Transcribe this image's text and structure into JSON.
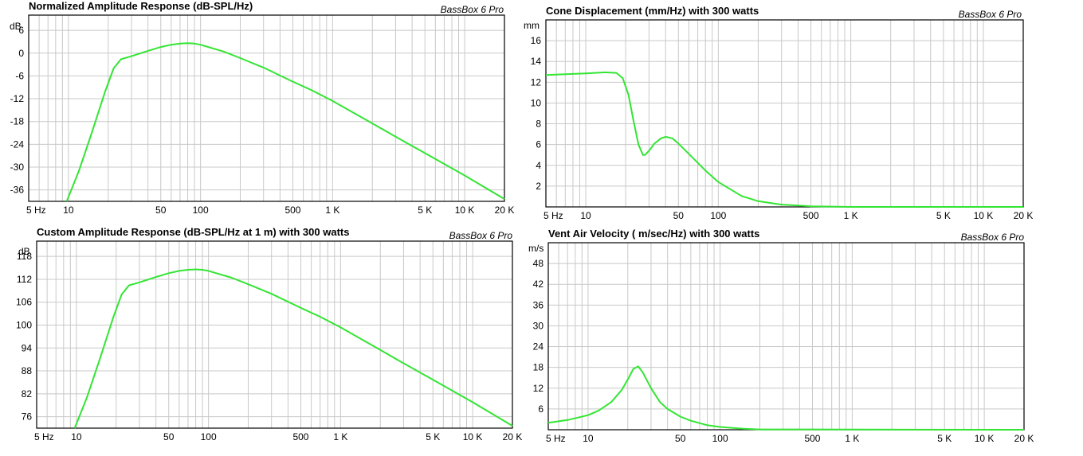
{
  "brand_label": "BassBox 6 Pro",
  "curve_color": "#33e533",
  "chart_data": [
    {
      "type": "line",
      "title": "Normalized Amplitude Response (dB-SPL/Hz)",
      "yunit": "dB",
      "xscale": "log",
      "xlim": [
        5,
        20000
      ],
      "ylim": [
        -39,
        10
      ],
      "yticks": [
        6,
        0,
        -6,
        -12,
        -18,
        -24,
        -30,
        -36
      ],
      "xtick_labels": [
        {
          "v": 5,
          "label": "5 Hz"
        },
        {
          "v": 10,
          "label": "10"
        },
        {
          "v": 50,
          "label": "50"
        },
        {
          "v": 100,
          "label": "100"
        },
        {
          "v": 500,
          "label": "500"
        },
        {
          "v": 1000,
          "label": "1 K"
        },
        {
          "v": 5000,
          "label": "5 K"
        },
        {
          "v": 10000,
          "label": "10 K"
        },
        {
          "v": 20000,
          "label": "20 K"
        }
      ],
      "grid": true,
      "series": [
        {
          "x": [
            9.7,
            12,
            15,
            19,
            22,
            25,
            30,
            40,
            50,
            60,
            70,
            80,
            90,
            100,
            150,
            200,
            300,
            500,
            700,
            1000,
            2000,
            3000,
            5000,
            10000,
            20000
          ],
          "values": [
            -39,
            -31,
            -21,
            -10,
            -4,
            -1.6,
            -0.8,
            0.6,
            1.6,
            2.2,
            2.5,
            2.6,
            2.5,
            2.2,
            0.4,
            -1.3,
            -3.8,
            -7.5,
            -9.8,
            -12.6,
            -18.5,
            -22,
            -26.3,
            -32.2,
            -38.4
          ]
        }
      ]
    },
    {
      "type": "line",
      "title": "Cone Displacement (mm/Hz) with 300 watts",
      "yunit": "mm",
      "xscale": "log",
      "xlim": [
        5,
        20000
      ],
      "ylim": [
        0,
        18
      ],
      "yticks": [
        16,
        14,
        12,
        10,
        8,
        6,
        4,
        2
      ],
      "xtick_labels": [
        {
          "v": 5,
          "label": "5 Hz"
        },
        {
          "v": 10,
          "label": "10"
        },
        {
          "v": 50,
          "label": "50"
        },
        {
          "v": 100,
          "label": "100"
        },
        {
          "v": 500,
          "label": "500"
        },
        {
          "v": 1000,
          "label": "1 K"
        },
        {
          "v": 5000,
          "label": "5 K"
        },
        {
          "v": 10000,
          "label": "10 K"
        },
        {
          "v": 20000,
          "label": "20 K"
        }
      ],
      "grid": true,
      "series": [
        {
          "x": [
            5,
            8,
            10,
            14,
            17,
            19,
            21,
            23,
            25,
            27,
            28,
            30,
            33,
            37,
            40,
            45,
            50,
            60,
            80,
            100,
            150,
            200,
            300,
            500,
            1000,
            20000
          ],
          "values": [
            12.7,
            12.8,
            12.85,
            12.95,
            12.9,
            12.4,
            10.8,
            8.2,
            6.0,
            5.0,
            5.0,
            5.4,
            6.1,
            6.6,
            6.75,
            6.6,
            6.1,
            5.1,
            3.5,
            2.4,
            1.05,
            0.55,
            0.22,
            0.06,
            0.0,
            0.0
          ]
        }
      ]
    },
    {
      "type": "line",
      "title": "Custom Amplitude Response (dB-SPL/Hz at 1 m) with 300 watts",
      "yunit": "dB",
      "xscale": "log",
      "xlim": [
        5,
        20000
      ],
      "ylim": [
        73,
        122
      ],
      "yticks": [
        118,
        112,
        106,
        100,
        94,
        88,
        82,
        76
      ],
      "xtick_labels": [
        {
          "v": 5,
          "label": "5 Hz"
        },
        {
          "v": 10,
          "label": "10"
        },
        {
          "v": 50,
          "label": "50"
        },
        {
          "v": 100,
          "label": "100"
        },
        {
          "v": 500,
          "label": "500"
        },
        {
          "v": 1000,
          "label": "1 K"
        },
        {
          "v": 5000,
          "label": "5 K"
        },
        {
          "v": 10000,
          "label": "10 K"
        },
        {
          "v": 20000,
          "label": "20 K"
        }
      ],
      "grid": true,
      "series": [
        {
          "x": [
            9.7,
            12,
            15,
            19,
            22,
            25,
            30,
            40,
            50,
            60,
            70,
            80,
            90,
            100,
            150,
            200,
            300,
            500,
            700,
            1000,
            2000,
            3000,
            5000,
            10000,
            20000
          ],
          "values": [
            73,
            81,
            91,
            102,
            108,
            110.4,
            111.2,
            112.6,
            113.6,
            114.2,
            114.5,
            114.6,
            114.5,
            114.2,
            112.4,
            110.7,
            108.2,
            104.5,
            102.2,
            99.4,
            93.5,
            90,
            85.7,
            79.8,
            73.6
          ]
        }
      ]
    },
    {
      "type": "line",
      "title": "Vent Air Velocity ( m/sec/Hz) with 300 watts",
      "yunit": "m/s",
      "xscale": "log",
      "xlim": [
        5,
        20000
      ],
      "ylim": [
        0,
        54
      ],
      "yticks": [
        48,
        42,
        36,
        30,
        24,
        18,
        12,
        6
      ],
      "xtick_labels": [
        {
          "v": 5,
          "label": "5 Hz"
        },
        {
          "v": 10,
          "label": "10"
        },
        {
          "v": 50,
          "label": "50"
        },
        {
          "v": 100,
          "label": "100"
        },
        {
          "v": 500,
          "label": "500"
        },
        {
          "v": 1000,
          "label": "1 K"
        },
        {
          "v": 5000,
          "label": "5 K"
        },
        {
          "v": 10000,
          "label": "10 K"
        },
        {
          "v": 20000,
          "label": "20 K"
        }
      ],
      "grid": true,
      "series": [
        {
          "x": [
            5,
            7,
            10,
            12,
            15,
            18,
            20,
            22,
            24,
            26,
            30,
            35,
            40,
            50,
            60,
            80,
            100,
            150,
            200,
            20000
          ],
          "values": [
            2.0,
            2.8,
            4.2,
            5.5,
            8.0,
            11.5,
            14.5,
            17.5,
            18.3,
            16.5,
            12.0,
            8.0,
            6.0,
            3.8,
            2.6,
            1.3,
            0.8,
            0.3,
            0.1,
            0.0
          ]
        }
      ]
    }
  ]
}
